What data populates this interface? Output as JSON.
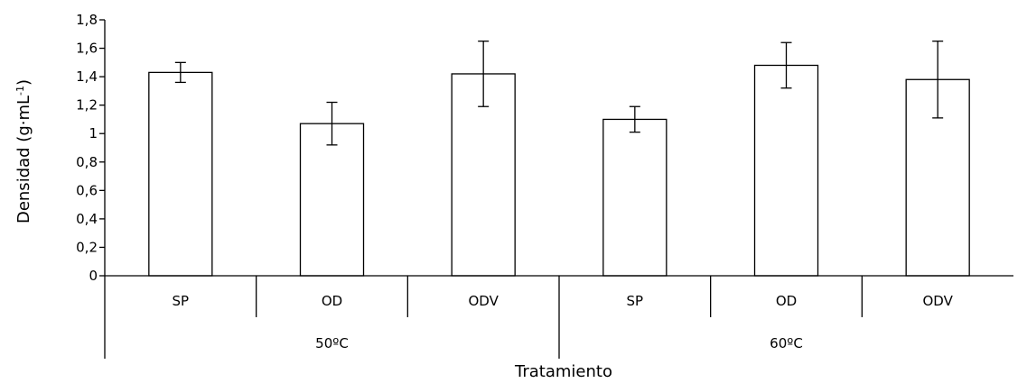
{
  "chart_data": {
    "type": "bar",
    "categories": [
      "SP",
      "OD",
      "ODV",
      "SP",
      "OD",
      "ODV"
    ],
    "groups": [
      "50ºC",
      "60ºC"
    ],
    "values": [
      1.43,
      1.07,
      1.42,
      1.1,
      1.48,
      1.38
    ],
    "error": [
      0.07,
      0.15,
      0.23,
      0.09,
      0.16,
      0.27
    ],
    "ylim": [
      0,
      1.8
    ],
    "yticks": [
      "0",
      "0,2",
      "0,4",
      "0,6",
      "0,8",
      "1",
      "1,2",
      "1,4",
      "1,6",
      "1,8"
    ],
    "ylabel": "Densidad (g·mL-1)",
    "ylabel_main": "Densidad (g·mL",
    "ylabel_sup": "-1",
    "ylabel_close": ")",
    "xlabel": "Tratamiento",
    "grid": false,
    "bar_fill": "#ffffff",
    "line_color": "#000000"
  }
}
